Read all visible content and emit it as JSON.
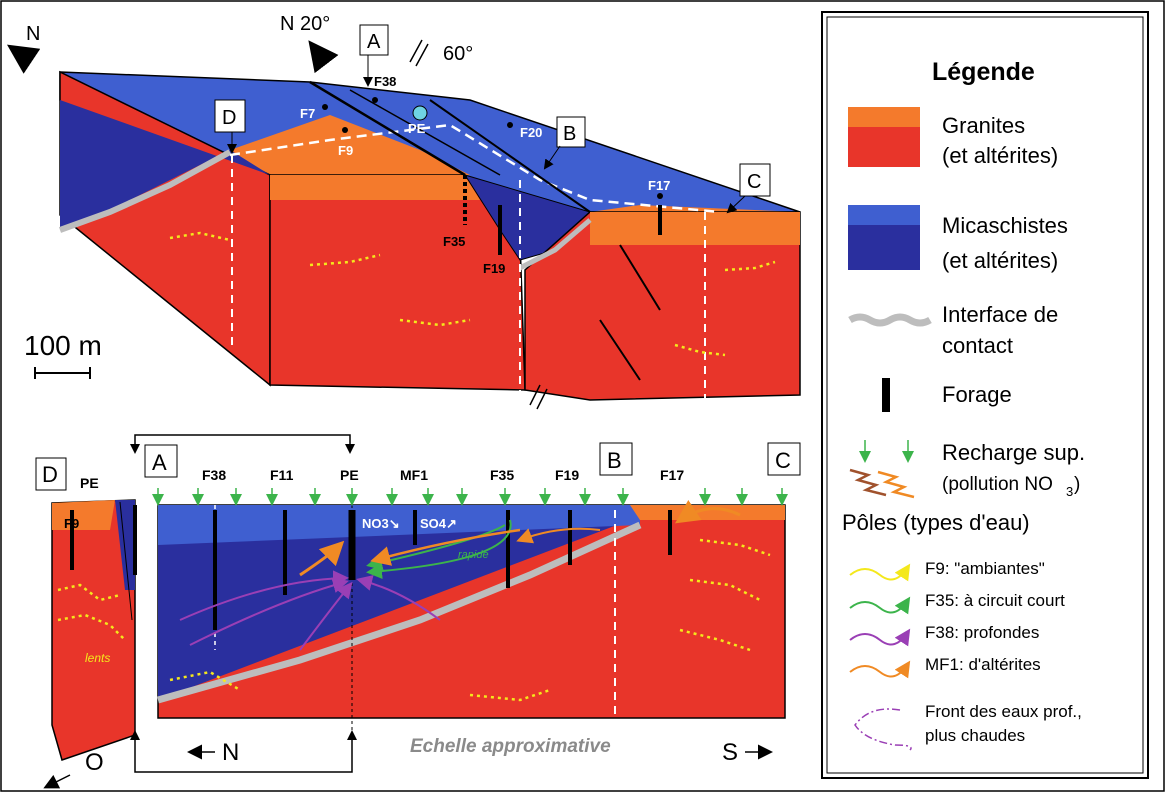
{
  "compass": {
    "north_top_left": "N",
    "north_20": "N 20°",
    "fault_dip": "60°",
    "west": "O",
    "north_section": "N",
    "south_section": "S"
  },
  "block": {
    "section_points": [
      "A",
      "B",
      "C",
      "D"
    ],
    "wells": [
      "F7",
      "F9",
      "F38",
      "F20",
      "F35",
      "F19",
      "F17"
    ],
    "pe": "PE",
    "scale": "100 m"
  },
  "section": {
    "points": [
      "A",
      "B",
      "C",
      "D"
    ],
    "wells": [
      "F38",
      "F11",
      "PE",
      "MF1",
      "F35",
      "F19",
      "F17"
    ],
    "d_panel_pe": "PE",
    "d_panel_well": "F9",
    "no3": "NO3↘",
    "so4": "SO4↗",
    "rapide": "rapide",
    "lents": "lents",
    "scale_note": "Echelle approximative"
  },
  "legend": {
    "title": "Légende",
    "granites_1": "Granites",
    "granites_2": "(et altérites)",
    "micaschistes_1": "Micaschistes",
    "micaschistes_2": "(et altérites)",
    "interface_1": "Interface de",
    "interface_2": "contact",
    "forage": "Forage",
    "recharge_1": "Recharge sup.",
    "recharge_2": "(pollution NO",
    "recharge_sub": "3",
    "recharge_close": ")",
    "poles_title": "Pôles (types d'eau)",
    "pole_f9": "F9: \"ambiantes\"",
    "pole_f35": "F35: à circuit court",
    "pole_f38": "F38: profondes",
    "pole_mf1": "MF1: d'altérites",
    "front_1": "Front des eaux prof.,",
    "front_2": "plus chaudes"
  },
  "colors": {
    "granite": "#e8352a",
    "granite_alt": "#f47a2c",
    "mica": "#2a2f9e",
    "mica_top": "#3f5fd0",
    "interface": "#bdbdbd",
    "yellow": "#f4e81c",
    "green": "#3cb44b",
    "purple": "#9a3fb5",
    "orange": "#f08a24"
  }
}
